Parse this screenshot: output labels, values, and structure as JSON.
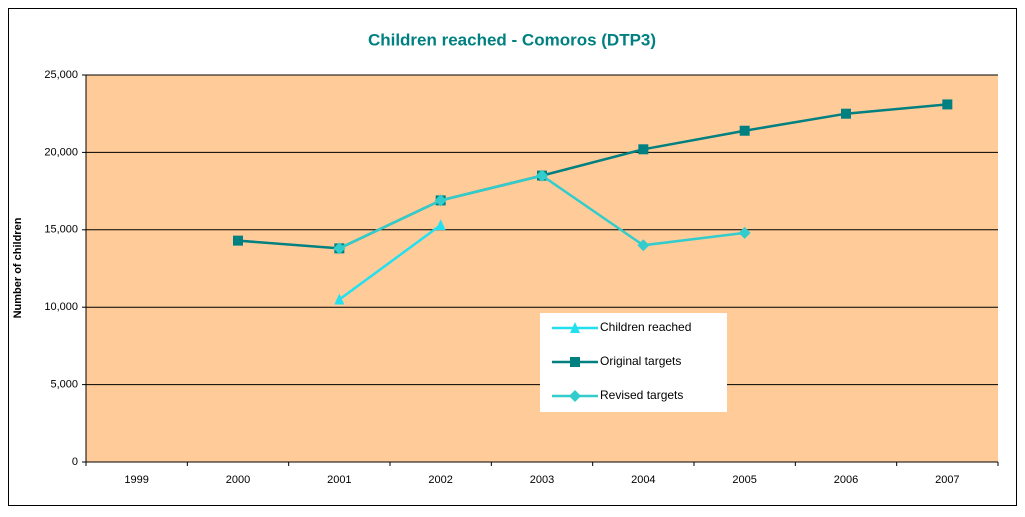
{
  "chart_data": {
    "type": "line",
    "title": "Children reached - Comoros (DTP3)",
    "y_label": "Number of children",
    "categories": [
      "1999",
      "2000",
      "2001",
      "2002",
      "2003",
      "2004",
      "2005",
      "2006",
      "2007"
    ],
    "series": [
      {
        "name": "Children reached",
        "color": "#22e0f0",
        "marker": "triangle",
        "values": [
          null,
          null,
          10500,
          15300,
          null,
          null,
          null,
          null,
          null
        ]
      },
      {
        "name": "Original targets",
        "color": "#008080",
        "marker": "square",
        "values": [
          null,
          14300,
          13800,
          16900,
          18500,
          20200,
          21400,
          22500,
          23100
        ]
      },
      {
        "name": "Revised targets",
        "color": "#33cccc",
        "marker": "diamond",
        "values": [
          null,
          null,
          13800,
          16900,
          18500,
          14000,
          14800,
          null,
          null
        ]
      }
    ],
    "ylim": [
      0,
      25000
    ],
    "yticks": [
      0,
      {
        "value": 5000,
        "label": "5,000"
      },
      {
        "value": 10000,
        "label": "10,000"
      },
      {
        "value": 15000,
        "label": "15,000"
      },
      {
        "value": 20000,
        "label": "20,000"
      },
      {
        "value": 25000,
        "label": "25,000"
      }
    ],
    "grid": true
  }
}
